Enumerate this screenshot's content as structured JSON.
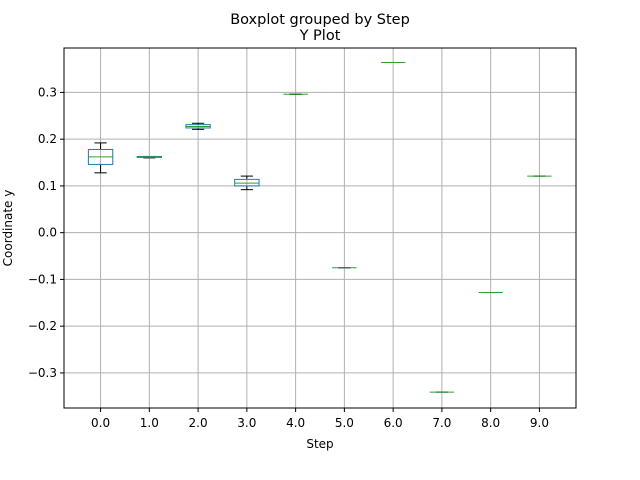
{
  "chart_data": {
    "type": "boxplot",
    "suptitle": "Boxplot grouped by Step",
    "title": "Y Plot",
    "xlabel": "Step",
    "ylabel": "Coordinate y",
    "ylim": [
      -0.375,
      0.395
    ],
    "yticks": [
      0.3,
      0.2,
      0.1,
      0.0,
      -0.1,
      -0.2,
      -0.3
    ],
    "ytick_labels": [
      "0.3",
      "0.2",
      "0.1",
      "0.0",
      "−0.1",
      "−0.2",
      "−0.3"
    ],
    "grid": true,
    "categories": [
      "0.0",
      "1.0",
      "2.0",
      "3.0",
      "4.0",
      "5.0",
      "6.0",
      "7.0",
      "8.0",
      "9.0"
    ],
    "boxes": [
      {
        "whislo": 0.128,
        "q1": 0.146,
        "med": 0.162,
        "q3": 0.178,
        "whishi": 0.192
      },
      {
        "whislo": 0.16,
        "q1": 0.161,
        "med": 0.162,
        "q3": 0.163,
        "whishi": 0.163
      },
      {
        "whislo": 0.221,
        "q1": 0.224,
        "med": 0.227,
        "q3": 0.231,
        "whishi": 0.234
      },
      {
        "whislo": 0.092,
        "q1": 0.1,
        "med": 0.106,
        "q3": 0.114,
        "whishi": 0.121
      },
      {
        "whislo": 0.296,
        "q1": 0.296,
        "med": 0.296,
        "q3": 0.296,
        "whishi": 0.296
      },
      {
        "whislo": -0.075,
        "q1": -0.075,
        "med": -0.075,
        "q3": -0.075,
        "whishi": -0.075
      },
      {
        "whislo": 0.364,
        "q1": 0.364,
        "med": 0.364,
        "q3": 0.364,
        "whishi": 0.364
      },
      {
        "whislo": -0.341,
        "q1": -0.341,
        "med": -0.341,
        "q3": -0.341,
        "whishi": -0.341
      },
      {
        "whislo": -0.128,
        "q1": -0.128,
        "med": -0.128,
        "q3": -0.128,
        "whishi": -0.128
      },
      {
        "whislo": 0.121,
        "q1": 0.121,
        "med": 0.121,
        "q3": 0.121,
        "whishi": 0.121
      }
    ],
    "colors": {
      "box": "#1f77b4",
      "median": "#2ca02c",
      "whisker": "#000000",
      "grid": "#b0b0b0",
      "axes": "#000000"
    }
  }
}
